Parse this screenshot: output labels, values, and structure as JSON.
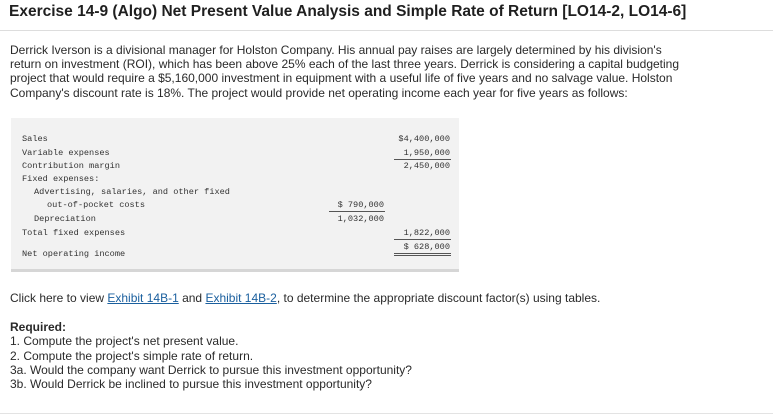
{
  "title": "Exercise 14-9 (Algo) Net Present Value Analysis and Simple Rate of Return [LO14-2, LO14-6]",
  "intro_lines": [
    "Derrick Iverson is a divisional manager for Holston Company. His annual pay raises are largely determined by his division's",
    "return on investment (ROI), which has been above 25% each of the last three years. Derrick is considering a capital budgeting",
    "project that would require a $5,160,000 investment in equipment with a useful life of five years and no salvage value. Holston",
    "Company's discount rate is 18%. The project would provide net operating income each year for five years as follows:"
  ],
  "statement": {
    "sales_label": "Sales",
    "sales_value": "$4,400,000",
    "variable_label": "Variable expenses",
    "variable_value": "1,950,000",
    "cm_label": "Contribution margin",
    "cm_value": "2,450,000",
    "fixed_header": "Fixed expenses:",
    "adv_label_1": "Advertising, salaries, and other fixed",
    "adv_label_2": "out-of-pocket costs",
    "adv_value": "$ 790,000",
    "dep_label": "Depreciation",
    "dep_value": "1,032,000",
    "total_fixed_label": "Total fixed expenses",
    "total_fixed_value": "1,822,000",
    "noi_label": "Net operating income",
    "noi_value": "$  628,000"
  },
  "instruction": {
    "prefix": "Click here to view ",
    "link1": "Exhibit 14B-1",
    "middle": " and ",
    "link2": "Exhibit 14B-2",
    "suffix": ", to determine the appropriate discount factor(s) using tables."
  },
  "required": {
    "heading": "Required:",
    "items": [
      "1. Compute the project's net present value.",
      "2. Compute the project's simple rate of return.",
      "3a. Would the company want Derrick to pursue this investment opportunity?",
      "3b. Would Derrick be inclined to pursue this investment opportunity?"
    ]
  }
}
